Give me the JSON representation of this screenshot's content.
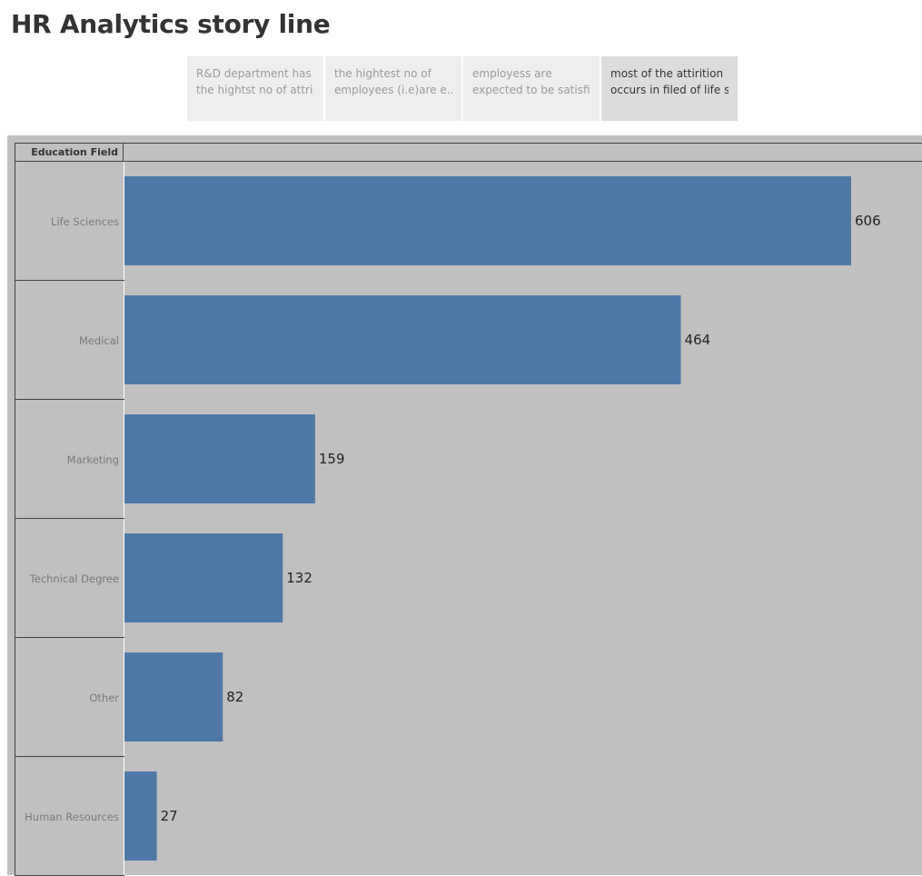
{
  "story": {
    "title": "HR Analytics story line",
    "points": [
      {
        "line1": "R&D department has",
        "line2": "the hightst no of attri..",
        "active": false
      },
      {
        "line1": "the hightest no of",
        "line2": "employees (i.e)are e..",
        "active": false
      },
      {
        "line1": "employess are",
        "line2": "expected to be satisfi..",
        "active": false
      },
      {
        "line1": "most of the attirition",
        "line2": "occurs in filed of life s..",
        "active": true
      }
    ]
  },
  "chart_data": {
    "type": "bar",
    "orientation": "horizontal",
    "row_header": "Education Field",
    "categories": [
      "Life Sciences",
      "Medical",
      "Marketing",
      "Technical Degree",
      "Other",
      "Human Resources"
    ],
    "values": [
      606,
      464,
      159,
      132,
      82,
      27
    ],
    "bar_color": "#4e79a7",
    "background_color": "#c0c0c0",
    "data_labels": true,
    "grid": false
  }
}
